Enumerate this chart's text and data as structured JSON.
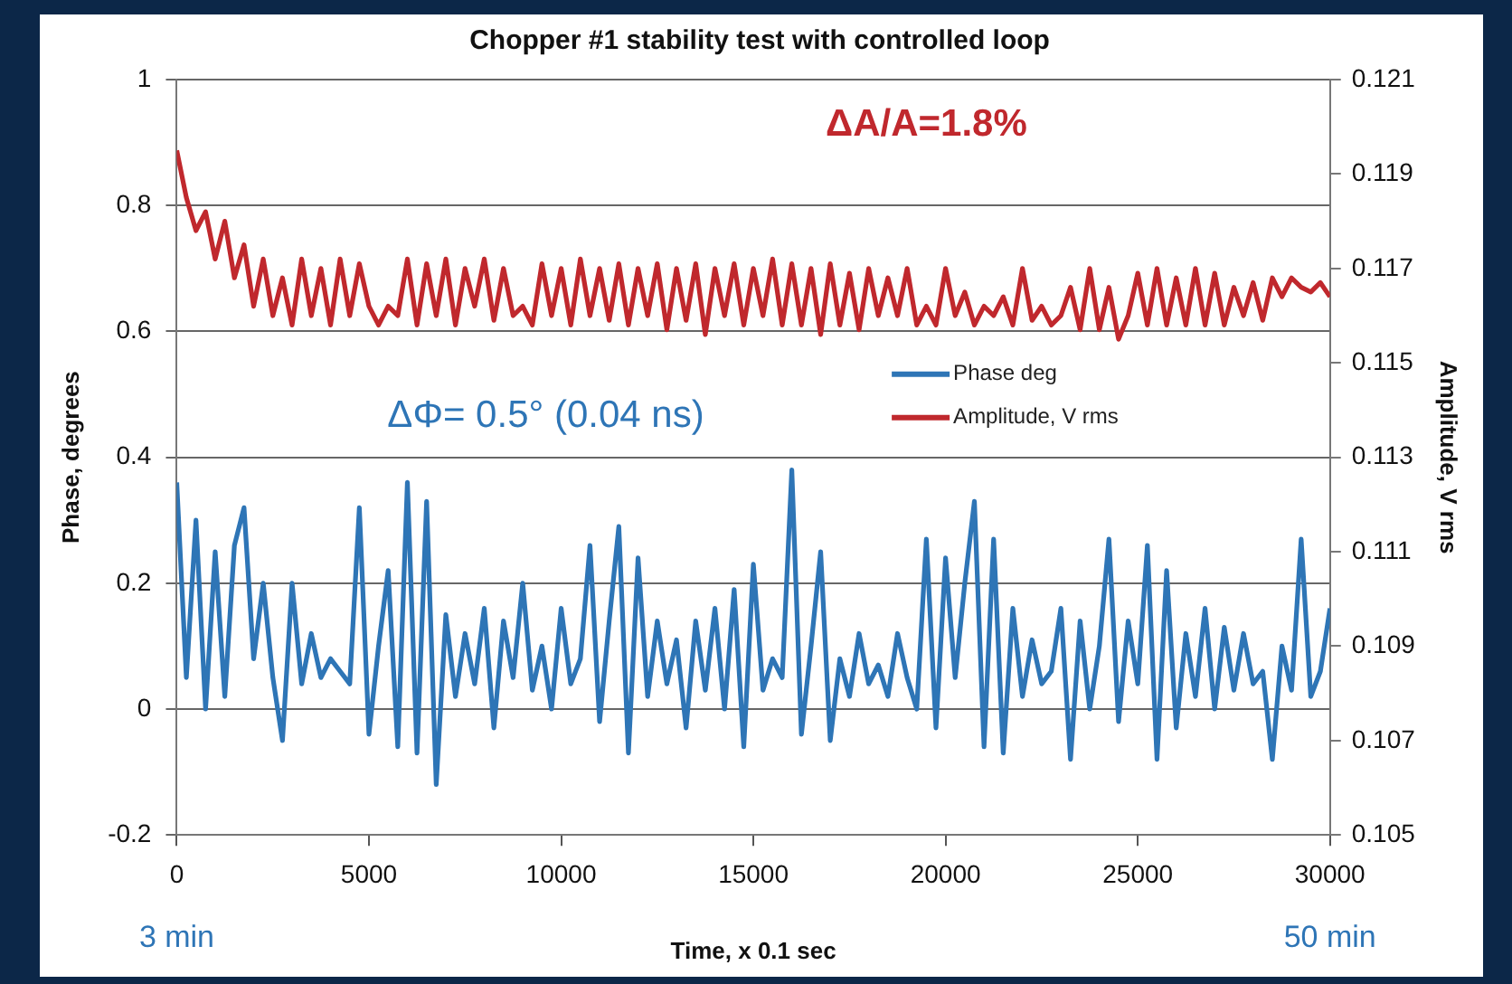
{
  "chart_data": {
    "type": "line",
    "title": "Chopper #1 stability test with controlled loop",
    "xlabel": "Time, x 0.1 sec",
    "ylabel": "Phase, degrees",
    "y2label": "Amplitude, V rms",
    "x": [
      0,
      250,
      500,
      750,
      1000,
      1250,
      1500,
      1750,
      2000,
      2250,
      2500,
      2750,
      3000,
      3250,
      3500,
      3750,
      4000,
      4250,
      4500,
      4750,
      5000,
      5250,
      5500,
      5750,
      6000,
      6250,
      6500,
      6750,
      7000,
      7250,
      7500,
      7750,
      8000,
      8250,
      8500,
      8750,
      9000,
      9250,
      9500,
      9750,
      10000,
      10250,
      10500,
      10750,
      11000,
      11250,
      11500,
      11750,
      12000,
      12250,
      12500,
      12750,
      13000,
      13250,
      13500,
      13750,
      14000,
      14250,
      14500,
      14750,
      15000,
      15250,
      15500,
      15750,
      16000,
      16250,
      16500,
      16750,
      17000,
      17250,
      17500,
      17750,
      18000,
      18250,
      18500,
      18750,
      19000,
      19250,
      19500,
      19750,
      20000,
      20250,
      20500,
      20750,
      21000,
      21250,
      21500,
      21750,
      22000,
      22250,
      22500,
      22750,
      23000,
      23250,
      23500,
      23750,
      24000,
      24250,
      24500,
      24750,
      25000,
      25250,
      25500,
      25750,
      26000,
      26250,
      26500,
      26750,
      27000,
      27250,
      27500,
      27750,
      28000,
      28250,
      28500,
      28750,
      29000,
      29250,
      29500,
      29750,
      30000
    ],
    "series": [
      {
        "name": "Phase deg",
        "color": "#2e75b6",
        "values": [
          0.36,
          0.05,
          0.3,
          0.0,
          0.25,
          0.02,
          0.26,
          0.32,
          0.08,
          0.2,
          0.05,
          -0.05,
          0.2,
          0.04,
          0.12,
          0.05,
          0.08,
          0.06,
          0.04,
          0.32,
          -0.04,
          0.1,
          0.22,
          -0.06,
          0.36,
          -0.07,
          0.33,
          -0.12,
          0.15,
          0.02,
          0.12,
          0.04,
          0.16,
          -0.03,
          0.14,
          0.05,
          0.2,
          0.03,
          0.1,
          0.0,
          0.16,
          0.04,
          0.08,
          0.26,
          -0.02,
          0.14,
          0.29,
          -0.07,
          0.24,
          0.02,
          0.14,
          0.04,
          0.11,
          -0.03,
          0.14,
          0.03,
          0.16,
          0.0,
          0.19,
          -0.06,
          0.23,
          0.03,
          0.08,
          0.05,
          0.38,
          -0.04,
          0.1,
          0.25,
          -0.05,
          0.08,
          0.02,
          0.12,
          0.04,
          0.07,
          0.02,
          0.12,
          0.05,
          0.0,
          0.27,
          -0.03,
          0.24,
          0.05,
          0.2,
          0.33,
          -0.06,
          0.27,
          -0.07,
          0.16,
          0.02,
          0.11,
          0.04,
          0.06,
          0.16,
          -0.08,
          0.14,
          0.0,
          0.1,
          0.27,
          -0.02,
          0.14,
          0.04,
          0.26,
          -0.08,
          0.22,
          -0.03,
          0.12,
          0.02,
          0.16,
          0.0,
          0.13,
          0.03,
          0.12,
          0.04,
          0.06,
          -0.08,
          0.1,
          0.03,
          0.27,
          0.02,
          0.06,
          0.16
        ]
      },
      {
        "name": "Amplitude, V rms",
        "color": "#c0282d",
        "axis": "y2",
        "values": [
          0.1195,
          0.1185,
          0.1178,
          0.1182,
          0.1172,
          0.118,
          0.1168,
          0.1175,
          0.1162,
          0.1172,
          0.116,
          0.1168,
          0.1158,
          0.1172,
          0.116,
          0.117,
          0.1158,
          0.1172,
          0.116,
          0.1171,
          0.1162,
          0.1158,
          0.1162,
          0.116,
          0.1172,
          0.1158,
          0.1171,
          0.116,
          0.1172,
          0.1158,
          0.117,
          0.1162,
          0.1172,
          0.1159,
          0.117,
          0.116,
          0.1162,
          0.1158,
          0.1171,
          0.116,
          0.117,
          0.1158,
          0.1172,
          0.116,
          0.117,
          0.1159,
          0.1171,
          0.1158,
          0.117,
          0.116,
          0.1171,
          0.1157,
          0.117,
          0.1159,
          0.1171,
          0.1156,
          0.117,
          0.116,
          0.1171,
          0.1158,
          0.117,
          0.116,
          0.1172,
          0.1158,
          0.1171,
          0.1158,
          0.117,
          0.1156,
          0.1171,
          0.1158,
          0.1169,
          0.1157,
          0.117,
          0.116,
          0.1168,
          0.116,
          0.117,
          0.1158,
          0.1162,
          0.1158,
          0.117,
          0.116,
          0.1165,
          0.1158,
          0.1162,
          0.116,
          0.1164,
          0.1158,
          0.117,
          0.1159,
          0.1162,
          0.1158,
          0.116,
          0.1166,
          0.1157,
          0.117,
          0.1157,
          0.1166,
          0.1155,
          0.116,
          0.1169,
          0.1158,
          0.117,
          0.1158,
          0.1168,
          0.1158,
          0.117,
          0.1158,
          0.1169,
          0.1158,
          0.1166,
          0.116,
          0.1167,
          0.1159,
          0.1168,
          0.1164,
          0.1168,
          0.1166,
          0.1165,
          0.1167,
          0.1164
        ]
      }
    ],
    "xlim": [
      0,
      30000
    ],
    "xticks": [
      0,
      5000,
      10000,
      15000,
      20000,
      25000,
      30000
    ],
    "ylim": [
      -0.2,
      1
    ],
    "yticks": [
      -0.2,
      0,
      0.2,
      0.4,
      0.6,
      0.8,
      1
    ],
    "y2lim": [
      0.105,
      0.121
    ],
    "y2ticks": [
      0.105,
      0.107,
      0.109,
      0.111,
      0.113,
      0.115,
      0.117,
      0.119,
      0.121
    ],
    "grid": "y",
    "legend": "center",
    "marker": "none",
    "line_style": "solid",
    "annotations": [
      "ΔA/A=1.8%",
      "ΔΦ= 0.5° (0.04 ns)",
      "3 min",
      "50 min"
    ]
  }
}
